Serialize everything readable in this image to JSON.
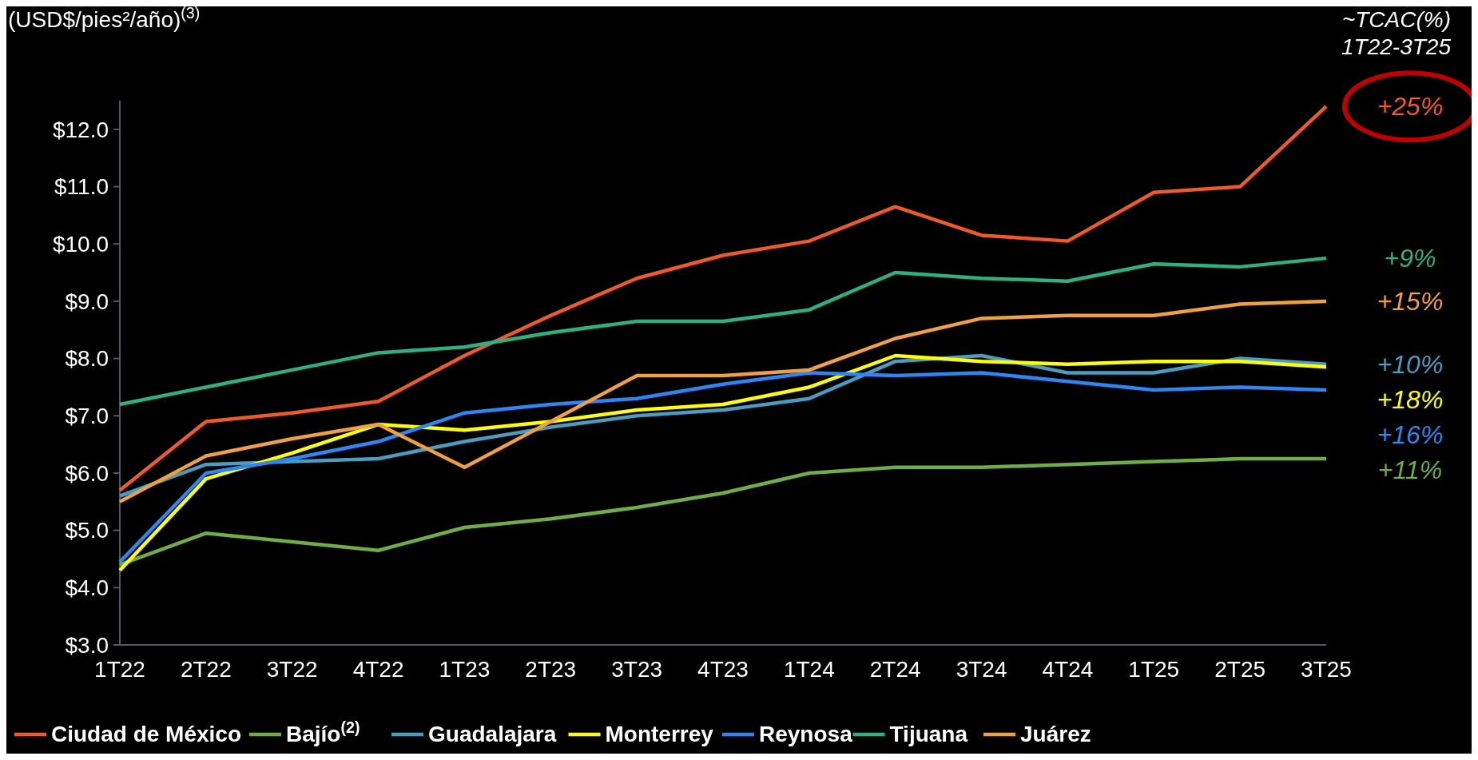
{
  "chart_data": {
    "type": "line",
    "ylabel": "(USD$/pies²/año)$^{(3)}$",
    "categories": [
      "1T22",
      "2T22",
      "3T22",
      "4T22",
      "1T23",
      "2T23",
      "3T23",
      "4T23",
      "1T24",
      "2T24",
      "3T24",
      "4T24",
      "1T25",
      "2T25",
      "3T25"
    ],
    "series": [
      {
        "name": "Ciudad de México",
        "color": "#f05a28",
        "values": [
          5.7,
          6.9,
          7.05,
          7.25,
          8.05,
          8.75,
          9.4,
          9.8,
          10.05,
          10.65,
          10.15,
          10.05,
          10.9,
          11.0,
          12.4
        ]
      },
      {
        "name": "Bajío$^{(2)}$",
        "color": "#70ad47",
        "values": [
          4.4,
          4.95,
          4.8,
          4.65,
          5.05,
          5.2,
          5.4,
          5.65,
          6.0,
          6.1,
          6.1,
          6.15,
          6.2,
          6.25,
          6.25
        ]
      },
      {
        "name": "Guadalajara",
        "color": "#4a9cc0",
        "values": [
          5.6,
          6.15,
          6.2,
          6.25,
          6.55,
          6.8,
          7.0,
          7.1,
          7.3,
          7.95,
          8.05,
          7.75,
          7.75,
          8.0,
          7.9
        ]
      },
      {
        "name": "Monterrey",
        "color": "#ffff00",
        "values": [
          4.3,
          5.9,
          6.35,
          6.85,
          6.75,
          6.9,
          7.1,
          7.2,
          7.5,
          8.05,
          7.95,
          7.9,
          7.95,
          7.95,
          7.85
        ]
      },
      {
        "name": "Reynosa",
        "color": "#2e86f5",
        "values": [
          4.45,
          6.0,
          6.25,
          6.55,
          7.05,
          7.2,
          7.3,
          7.55,
          7.75,
          7.7,
          7.75,
          7.6,
          7.45,
          7.5,
          7.45
        ]
      },
      {
        "name": "Tijuana",
        "color": "#2fb082",
        "values": [
          7.2,
          7.5,
          7.8,
          8.1,
          8.2,
          8.45,
          8.65,
          8.65,
          8.85,
          9.5,
          9.4,
          9.35,
          9.65,
          9.6,
          9.75
        ]
      },
      {
        "name": "Juárez",
        "color": "#f0a040",
        "values": [
          5.5,
          6.3,
          6.6,
          6.85,
          6.1,
          6.9,
          7.7,
          7.7,
          7.8,
          8.35,
          8.7,
          8.75,
          8.75,
          8.95,
          9.0
        ]
      }
    ],
    "ylim": [
      3,
      12.5
    ],
    "yticks": [
      {
        "value": 3,
        "label": "$3.0"
      },
      {
        "value": 4,
        "label": "$4.0"
      },
      {
        "value": 5,
        "label": "$5.0"
      },
      {
        "value": 6,
        "label": "$6.0"
      },
      {
        "value": 7,
        "label": "$7.0"
      },
      {
        "value": 8,
        "label": "$8.0"
      },
      {
        "value": 9,
        "label": "$9.0"
      },
      {
        "value": 10,
        "label": "$10.0"
      },
      {
        "value": 11,
        "label": "$11.0"
      },
      {
        "value": 12,
        "label": "$12.0"
      }
    ],
    "grid": false,
    "legend": "bottom",
    "marker": "none",
    "line_style": "solid",
    "annotations": [
      "~TCAC(%) 1T22-3T25",
      {
        "text": "+25%",
        "x": "3T25",
        "y": 12.4
      },
      {
        "text": "+9%",
        "x": "3T25",
        "y": 9.75
      },
      {
        "text": "+15%",
        "x": "3T25",
        "y": 9.0
      },
      {
        "text": "+10%",
        "x": "3T25",
        "y": 7.9
      },
      {
        "text": "+18%",
        "x": "3T25",
        "y": 7.85
      },
      {
        "text": "+16%",
        "x": "3T25",
        "y": 7.45
      },
      {
        "text": "+11%",
        "x": "3T25",
        "y": 6.25
      }
    ]
  }
}
